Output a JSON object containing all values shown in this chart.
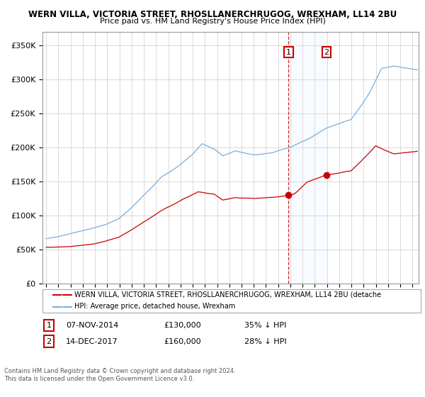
{
  "title1": "WERN VILLA, VICTORIA STREET, RHOSLLANERCHRUGOG, WREXHAM, LL14 2BU",
  "title2": "Price paid vs. HM Land Registry's House Price Index (HPI)",
  "red_label": "WERN VILLA, VICTORIA STREET, RHOSLLANERCHRUGOG, WREXHAM, LL14 2BU (detache",
  "blue_label": "HPI: Average price, detached house, Wrexham",
  "transaction1_date": "07-NOV-2014",
  "transaction1_price": 130000,
  "transaction1_pricefmt": "£130,000",
  "transaction1_hpi": "35% ↓ HPI",
  "transaction2_date": "14-DEC-2017",
  "transaction2_price": 160000,
  "transaction2_pricefmt": "£160,000",
  "transaction2_hpi": "28% ↓ HPI",
  "footer1": "Contains HM Land Registry data © Crown copyright and database right 2024.",
  "footer2": "This data is licensed under the Open Government Licence v3.0.",
  "ylim_min": 0,
  "ylim_max": 370000,
  "xlim_min": 1994.7,
  "xlim_max": 2025.5,
  "red_color": "#cc0000",
  "blue_color": "#7aaddb",
  "shading_color": "#ddeeff",
  "dashed_line_color": "#cc0000",
  "background_color": "#ffffff",
  "grid_color": "#cccccc",
  "transaction1_x": 2014.854,
  "transaction2_x": 2017.954,
  "shade_start": 2014.854,
  "shade_end": 2017.954,
  "chart_height_ratio": 0.73
}
